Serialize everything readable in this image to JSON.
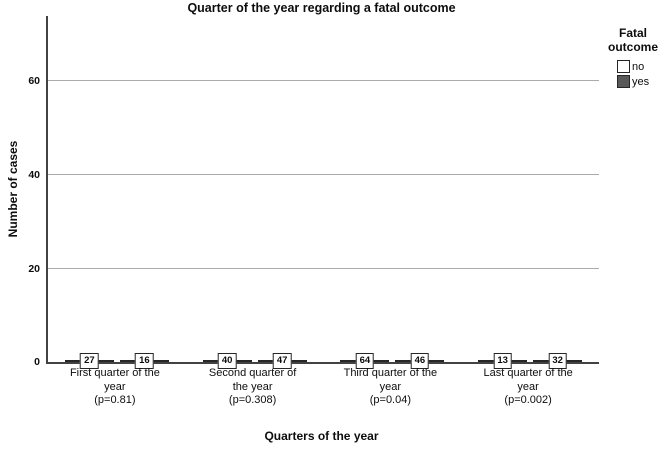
{
  "chart": {
    "title": "Quarter of the year regarding a fatal outcome",
    "xlabel": "Quarters of the year",
    "ylabel": "Number of cases"
  },
  "legend": {
    "title_lines": [
      "Fatal",
      "outcome"
    ],
    "entries": [
      {
        "label": "no",
        "color": "#ffffff"
      },
      {
        "label": "yes",
        "color": "#595959"
      }
    ]
  },
  "colors": {
    "bar_no": "#ffffff",
    "bar_yes": "#595959",
    "bar_border": "#262626",
    "axis": "#424242",
    "gridline": "#ababab",
    "background": "#ffffff"
  },
  "chart_data": {
    "type": "bar",
    "title": "Quarter of the year regarding a fatal outcome",
    "xlabel": "Quarters of the year",
    "ylabel": "Number of cases",
    "categories": [
      "First quarter of the year (p=0.81)",
      "Second quarter of the year (p=0.308)",
      "Third quarter of the year (p=0.04)",
      "Last quarter of the year (p=0.002)"
    ],
    "category_lines": [
      [
        "First quarter of the",
        "year",
        "(p=0.81)"
      ],
      [
        "Second quarter of",
        "the year",
        "(p=0.308)"
      ],
      [
        "Third quarter of the",
        "year",
        "(p=0.04)"
      ],
      [
        "Last quarter of the",
        "year",
        "(p=0.002)"
      ]
    ],
    "series": [
      {
        "name": "no",
        "values": [
          27,
          40,
          64,
          13
        ],
        "fill": "#ffffff"
      },
      {
        "name": "yes",
        "values": [
          16,
          47,
          46,
          32
        ],
        "fill": "#595959"
      }
    ],
    "bar_value_labels": true,
    "yticks": [
      0,
      20,
      40,
      60
    ],
    "ylim": [
      0,
      74
    ],
    "grid": true,
    "legend_position": "right"
  }
}
